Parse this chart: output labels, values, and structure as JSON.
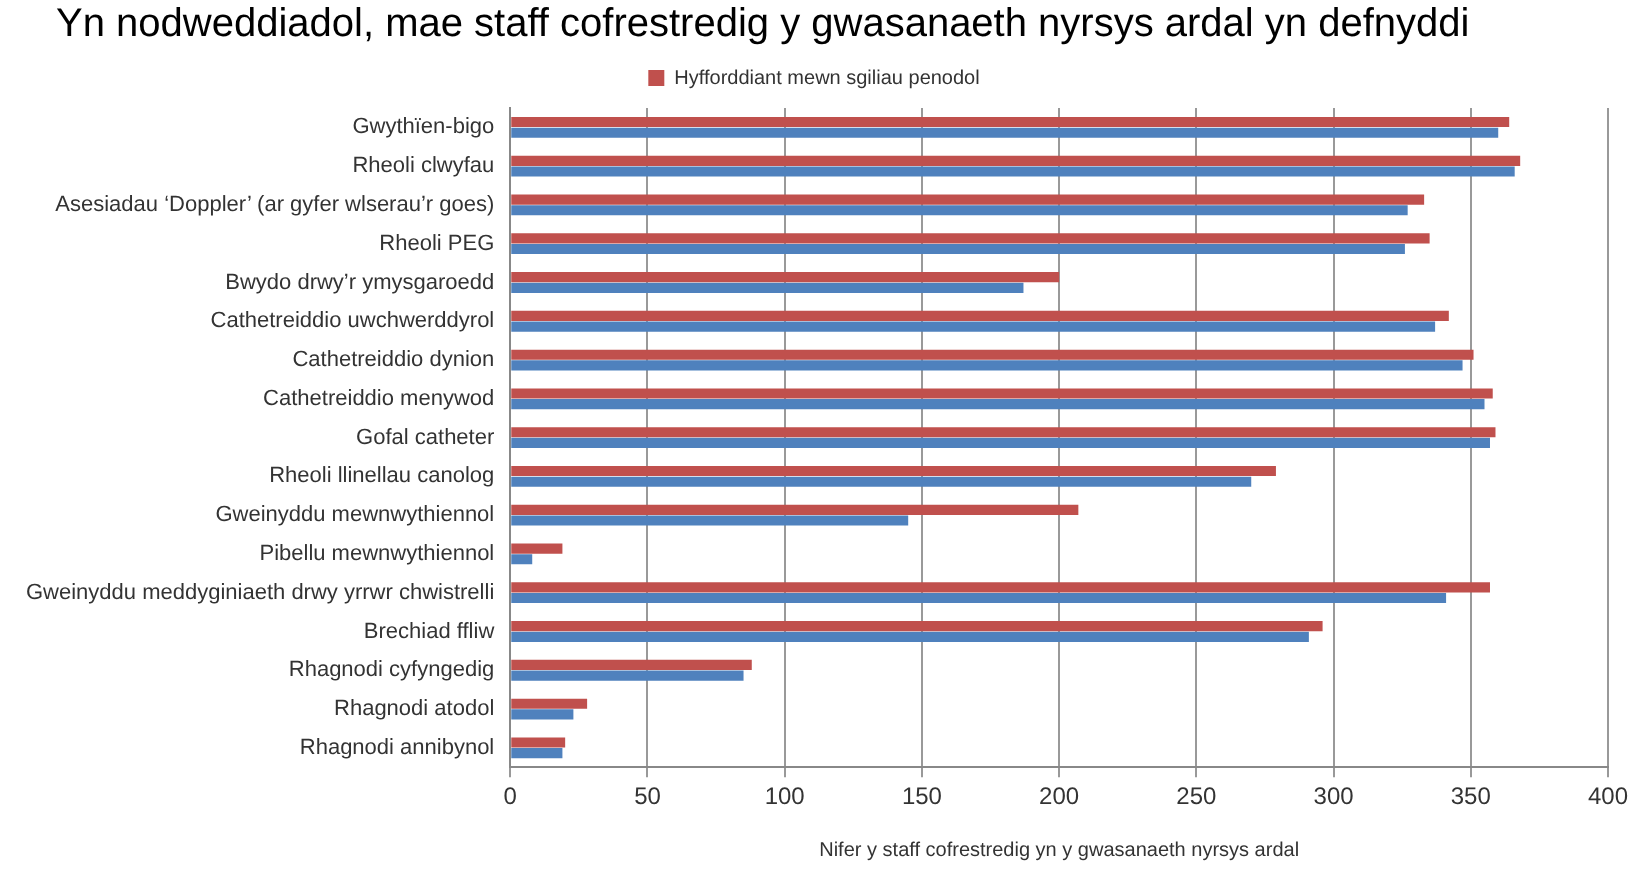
{
  "chart_data": {
    "type": "bar",
    "orientation": "horizontal",
    "title": "Yn nodweddiadol, mae staff cofrestredig y gwasanaeth nyrsys ardal yn defnyddi",
    "xlabel": "Nifer y staff cofrestredig yn y gwasanaeth nyrsys ardal",
    "categories": [
      "Gwythïen-bigo",
      "Rheoli clwyfau",
      "Asesiadau ‘Doppler’ (ar gyfer wlserau’r goes)",
      "Rheoli PEG",
      "Bwydo drwy’r ymysgaroedd",
      "Cathetreiddio uwchwerddyrol",
      "Cathetreiddio dynion",
      "Cathetreiddio menywod",
      "Gofal catheter",
      "Rheoli llinellau canolog",
      "Gweinyddu mewnwythiennol",
      "Pibellu mewnwythiennol",
      "Gweinyddu meddyginiaeth drwy yrrwr chwistrelli",
      "Brechiad ffliw",
      "Rhagnodi cyfyngedig",
      "Rhagnodi atodol",
      "Rhagnodi annibynol"
    ],
    "series": [
      {
        "name": "Hyfforddiant mewn sgiliau penodol",
        "color": "#c0504d",
        "values": [
          364,
          368,
          333,
          335,
          200,
          342,
          351,
          358,
          359,
          279,
          207,
          19,
          357,
          296,
          88,
          28,
          20
        ]
      },
      {
        "color": "#4f81bd",
        "values": [
          360,
          366,
          327,
          326,
          187,
          337,
          347,
          355,
          357,
          270,
          145,
          8,
          341,
          291,
          85,
          23,
          19
        ]
      }
    ],
    "xlim": [
      0,
      400
    ],
    "xticks": [
      0,
      50,
      100,
      150,
      200,
      250,
      300,
      350,
      400
    ],
    "grid": "x",
    "legend": "top"
  }
}
